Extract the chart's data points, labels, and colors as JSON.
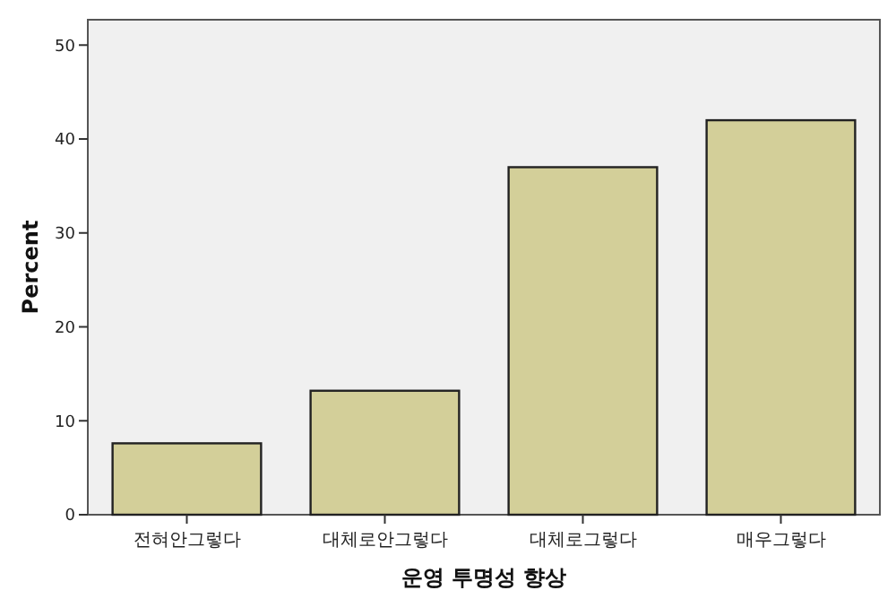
{
  "chart_data": {
    "type": "bar",
    "xlabel": "운영 투명성 향상",
    "ylabel": "Percent",
    "categories": [
      "전혀안그렇다",
      "대체로안그렇다",
      "대체로그렇다",
      "매우그렇다"
    ],
    "values": [
      7.6,
      13.2,
      37.0,
      42.0
    ],
    "color": "#d3cf99",
    "ylim": [
      0,
      52.7
    ],
    "yticks": [
      0,
      10,
      20,
      30,
      40,
      50
    ],
    "grid": false
  }
}
